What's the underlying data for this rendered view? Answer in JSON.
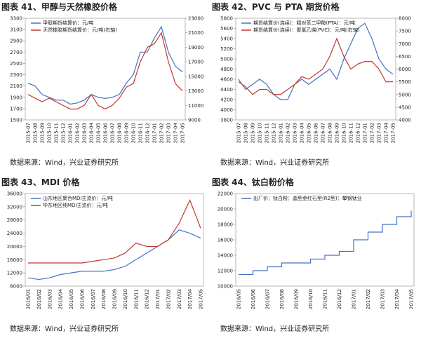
{
  "chart_data": [
    {
      "type": "line",
      "title": "图表 41、甲醇与天然橡胶价格",
      "source": "数据来源：Wind，兴业证券研究所",
      "categories": [
        "2015-07",
        "2015-08",
        "2015-09",
        "2015-10",
        "2015-11",
        "2015-12",
        "2016-01",
        "2016-02",
        "2016-03",
        "2016-04",
        "2016-05",
        "2016-06",
        "2016-07",
        "2016-08",
        "2016-09",
        "2016-10",
        "2016-11",
        "2016-12",
        "2017-01",
        "2017-02",
        "2017-03",
        "2017-04",
        "2017-05"
      ],
      "ylim": [
        1500,
        3300
      ],
      "yticks": [
        1500,
        1700,
        1900,
        2100,
        2300,
        2500,
        2700,
        2900,
        3100,
        3300
      ],
      "y2lim": [
        9000,
        23000
      ],
      "y2ticks": [
        9000,
        11000,
        13000,
        15000,
        17000,
        19000,
        21000,
        23000
      ],
      "series": [
        {
          "name": "甲醇期货结算价：元/吨",
          "color": "#4472c4",
          "values": [
            2150,
            2100,
            1950,
            1900,
            1850,
            1850,
            1780,
            1800,
            1850,
            1950,
            1900,
            1880,
            1900,
            1950,
            2150,
            2300,
            2700,
            2700,
            2950,
            3150,
            2700,
            2450,
            2350
          ]
        },
        {
          "name": "天然橡胶期货结算价：元/吨(右轴)",
          "color": "#c0392b",
          "axis": "y2",
          "values": [
            12500,
            12000,
            11500,
            12000,
            11500,
            11000,
            10500,
            10500,
            11000,
            12500,
            11000,
            10500,
            11000,
            12000,
            13500,
            14000,
            17000,
            19000,
            19500,
            21000,
            17000,
            14000,
            13000
          ]
        }
      ]
    },
    {
      "type": "line",
      "title": "图表 42、PVC 与 PTA 期货价格",
      "source": "数据来源：Wind，兴业证券研究所",
      "categories": [
        "2015-07",
        "2015-08",
        "2015-09",
        "2015-10",
        "2015-11",
        "2015-12",
        "2016-01",
        "2016-02",
        "2016-03",
        "2016-04",
        "2016-05",
        "2016-06",
        "2016-07",
        "2016-08",
        "2016-09",
        "2016-10",
        "2016-11",
        "2016-12",
        "2017-01",
        "2017-02",
        "2017-03",
        "2017-04",
        "2017-05"
      ],
      "ylim": [
        3800,
        5800
      ],
      "yticks": [
        3800,
        4000,
        4200,
        4400,
        4600,
        4800,
        5000,
        5200,
        5400,
        5600,
        5800
      ],
      "y2lim": [
        4000,
        8000
      ],
      "y2ticks": [
        4000,
        4500,
        5000,
        5500,
        6000,
        6500,
        7000,
        7500,
        8000
      ],
      "series": [
        {
          "name": "期货结算价(连续)：精对苯二甲酸(PTA)：元/吨",
          "color": "#4472c4",
          "values": [
            4600,
            4400,
            4500,
            4600,
            4500,
            4300,
            4200,
            4200,
            4500,
            4600,
            4500,
            4600,
            4700,
            4800,
            4600,
            5000,
            5300,
            5600,
            5700,
            5400,
            5000,
            4800,
            4700
          ]
        },
        {
          "name": "期货结算价(连续)：聚氯乙烯(PVC)：元/吨(右轴)",
          "color": "#c0392b",
          "axis": "y2",
          "values": [
            5500,
            5300,
            5000,
            5200,
            5200,
            5000,
            5000,
            5200,
            5400,
            5700,
            5600,
            5800,
            6000,
            6500,
            7200,
            6500,
            6000,
            6200,
            6300,
            6300,
            6000,
            5500,
            5500
          ]
        }
      ]
    },
    {
      "type": "line",
      "title": "图表 43、MDI 价格",
      "source": "数据来源：Wind，兴业证券研究所",
      "categories": [
        "2016/01",
        "2016/02",
        "2016/03",
        "2016/04",
        "2016/05",
        "2016/06",
        "2016/07",
        "2016/08",
        "2016/09",
        "2016/10",
        "2016/11",
        "2016/12",
        "2017/01",
        "2017/02",
        "2017/03",
        "2017/04",
        "2017/05"
      ],
      "ylim": [
        8000,
        36000
      ],
      "yticks": [
        8000,
        12000,
        16000,
        20000,
        24000,
        28000,
        32000,
        36000
      ],
      "series": [
        {
          "name": "山东地区聚合MDI主流价：元/吨",
          "color": "#4472c4",
          "values": [
            10500,
            10000,
            10500,
            11500,
            12000,
            12500,
            12500,
            12500,
            13000,
            14000,
            16000,
            18000,
            20000,
            22000,
            25000,
            24000,
            22500
          ]
        },
        {
          "name": "华东地区纯MDI主流价：元/吨",
          "color": "#c0392b",
          "values": [
            15000,
            15000,
            15000,
            15000,
            15000,
            15000,
            15500,
            16000,
            16500,
            18000,
            21000,
            20000,
            20000,
            22000,
            27000,
            34000,
            25500
          ]
        }
      ]
    },
    {
      "type": "step",
      "title": "图表 44、钛白粉价格",
      "source": "数据来源：Wind，兴业证券研究所",
      "categories": [
        "2016/05",
        "2016/06",
        "2016/07",
        "2016/08",
        "2016/09",
        "2016/10",
        "2016/11",
        "2016/12",
        "2017/01",
        "2017/02",
        "2017/03",
        "2017/04",
        "2017/05"
      ],
      "ylim": [
        10000,
        22000
      ],
      "yticks": [
        10000,
        12000,
        14000,
        16000,
        18000,
        20000,
        22000
      ],
      "series": [
        {
          "name": "出厂价：钛白粉：晶型金红石型(R2型)：攀钢钛业",
          "color": "#4472c4",
          "values": [
            11500,
            12000,
            12500,
            13000,
            13000,
            13500,
            14000,
            14500,
            16000,
            17000,
            18000,
            19000,
            19800
          ]
        }
      ]
    }
  ]
}
